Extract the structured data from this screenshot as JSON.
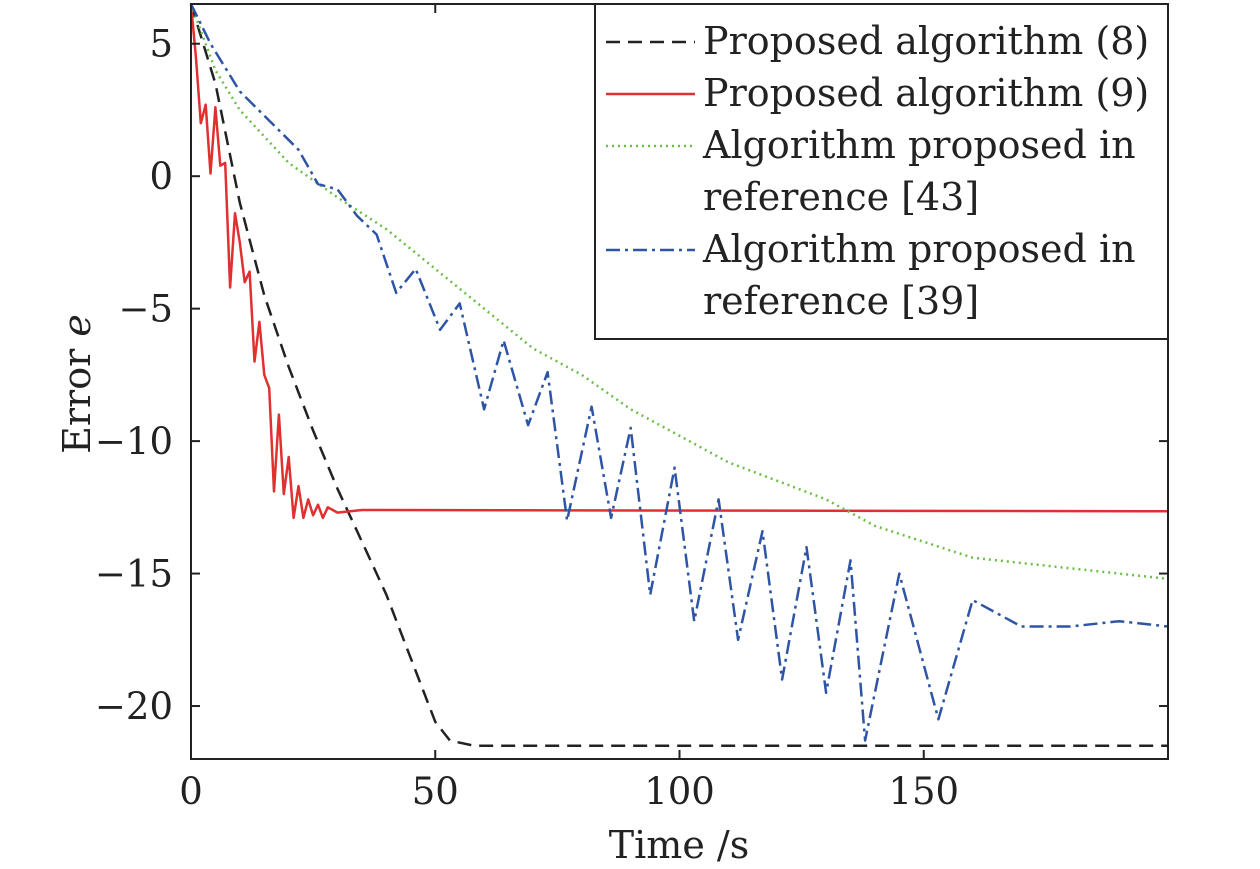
{
  "chart_data": {
    "type": "line",
    "xlabel": "Time /s",
    "ylabel": "Error",
    "ylabel_symbol": "e",
    "xlim": [
      0,
      200
    ],
    "ylim": [
      -22,
      6.5
    ],
    "xticks": [
      0,
      50,
      100,
      150
    ],
    "yticks": [
      5,
      0,
      -5,
      -10,
      -15,
      -20
    ],
    "ytick_labels": [
      "5",
      "0",
      "−5",
      "−10",
      "−15",
      "−20"
    ],
    "grid": false,
    "legend_position": "top-right",
    "series": [
      {
        "name": "Proposed algorithm (8)",
        "color": "#222222",
        "style": "dashed",
        "points": [
          [
            0,
            6.5
          ],
          [
            5,
            3.5
          ],
          [
            10,
            -1.0
          ],
          [
            15,
            -4.5
          ],
          [
            20,
            -7.2
          ],
          [
            25,
            -9.6
          ],
          [
            30,
            -11.8
          ],
          [
            35,
            -13.8
          ],
          [
            40,
            -15.8
          ],
          [
            45,
            -18.2
          ],
          [
            50,
            -20.6
          ],
          [
            53,
            -21.3
          ],
          [
            58,
            -21.5
          ],
          [
            200,
            -21.5
          ]
        ]
      },
      {
        "name": "Proposed algorithm (9)",
        "color": "#e03030",
        "style": "solid",
        "points": [
          [
            0,
            6.5
          ],
          [
            1,
            4.5
          ],
          [
            2,
            2.0
          ],
          [
            3,
            2.7
          ],
          [
            4,
            0.1
          ],
          [
            5,
            2.6
          ],
          [
            6,
            0.4
          ],
          [
            7,
            0.5
          ],
          [
            8,
            -4.2
          ],
          [
            9,
            -1.4
          ],
          [
            10,
            -2.5
          ],
          [
            11,
            -4.0
          ],
          [
            12,
            -3.6
          ],
          [
            13,
            -7.0
          ],
          [
            14,
            -5.5
          ],
          [
            15,
            -7.5
          ],
          [
            16,
            -8.0
          ],
          [
            17,
            -11.9
          ],
          [
            18,
            -9.0
          ],
          [
            19,
            -12.0
          ],
          [
            20,
            -10.6
          ],
          [
            21,
            -12.9
          ],
          [
            22,
            -11.7
          ],
          [
            23,
            -12.9
          ],
          [
            24,
            -12.2
          ],
          [
            25,
            -12.8
          ],
          [
            26,
            -12.4
          ],
          [
            27,
            -12.9
          ],
          [
            28,
            -12.5
          ],
          [
            30,
            -12.7
          ],
          [
            35,
            -12.6
          ],
          [
            200,
            -12.65
          ]
        ]
      },
      {
        "name": "Algorithm proposed in reference [43]",
        "color": "#6bbf45",
        "style": "dotted",
        "points": [
          [
            0,
            6.5
          ],
          [
            5,
            4.0
          ],
          [
            10,
            2.5
          ],
          [
            15,
            1.5
          ],
          [
            20,
            0.5
          ],
          [
            30,
            -0.8
          ],
          [
            40,
            -2.0
          ],
          [
            50,
            -3.5
          ],
          [
            60,
            -5.0
          ],
          [
            70,
            -6.5
          ],
          [
            80,
            -7.5
          ],
          [
            90,
            -8.8
          ],
          [
            100,
            -9.8
          ],
          [
            110,
            -10.8
          ],
          [
            120,
            -11.5
          ],
          [
            130,
            -12.2
          ],
          [
            140,
            -13.2
          ],
          [
            150,
            -13.8
          ],
          [
            160,
            -14.4
          ],
          [
            170,
            -14.6
          ],
          [
            180,
            -14.8
          ],
          [
            190,
            -15.0
          ],
          [
            200,
            -15.2
          ]
        ]
      },
      {
        "name": "Algorithm proposed in reference [39]",
        "color": "#2e55a5",
        "style": "dashdot",
        "points": [
          [
            0,
            6.5
          ],
          [
            4,
            5.0
          ],
          [
            10,
            3.2
          ],
          [
            16,
            2.1
          ],
          [
            22,
            1.0
          ],
          [
            26,
            -0.3
          ],
          [
            30,
            -0.5
          ],
          [
            34,
            -1.5
          ],
          [
            38,
            -2.2
          ],
          [
            42,
            -4.4
          ],
          [
            46,
            -3.5
          ],
          [
            51,
            -5.8
          ],
          [
            55,
            -4.8
          ],
          [
            60,
            -8.8
          ],
          [
            64,
            -6.2
          ],
          [
            69,
            -9.4
          ],
          [
            73,
            -7.4
          ],
          [
            77,
            -13.0
          ],
          [
            82,
            -8.7
          ],
          [
            86,
            -12.9
          ],
          [
            90,
            -9.5
          ],
          [
            94,
            -15.8
          ],
          [
            99,
            -11.0
          ],
          [
            103,
            -16.8
          ],
          [
            108,
            -12.2
          ],
          [
            112,
            -17.5
          ],
          [
            117,
            -13.4
          ],
          [
            121,
            -19.0
          ],
          [
            126,
            -14.0
          ],
          [
            130,
            -19.5
          ],
          [
            135,
            -14.5
          ],
          [
            138,
            -21.3
          ],
          [
            145,
            -15.0
          ],
          [
            153,
            -20.5
          ],
          [
            160,
            -16.0
          ],
          [
            170,
            -17.0
          ],
          [
            180,
            -17.0
          ],
          [
            190,
            -16.8
          ],
          [
            200,
            -17.0
          ]
        ]
      }
    ]
  },
  "legend": {
    "entries": [
      {
        "lines": [
          "Proposed algorithm (8)"
        ]
      },
      {
        "lines": [
          "Proposed algorithm (9)"
        ]
      },
      {
        "lines": [
          "Algorithm proposed in",
          "reference [43]"
        ]
      },
      {
        "lines": [
          "Algorithm proposed in",
          "reference [39]"
        ]
      }
    ]
  }
}
